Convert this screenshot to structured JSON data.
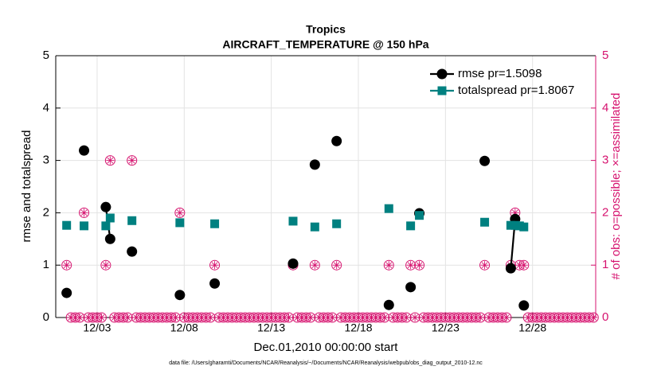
{
  "chart_data": {
    "type": "line",
    "title": "Tropics",
    "subtitle": "AIRCRAFT_TEMPERATURE @ 150 hPa",
    "xlabel": "Dec.01,2010 00:00:00 start",
    "ylabel": "rmse and totalspread",
    "y2label": "# of obs: o=possible; ×=assimilated",
    "footnote": "data file: /Users/gharamti/Documents/NCAR/Reanalysis/~/Documents/NCAR/Reanalysis/webpub/obs_diag_output_2010-12.nc",
    "xlim": [
      -0.375,
      30.625
    ],
    "xticks": [
      {
        "value": 2,
        "label": "12/03"
      },
      {
        "value": 7,
        "label": "12/08"
      },
      {
        "value": 12,
        "label": "12/13"
      },
      {
        "value": 17,
        "label": "12/18"
      },
      {
        "value": 22,
        "label": "12/23"
      },
      {
        "value": 27,
        "label": "12/28"
      }
    ],
    "ylim": [
      0,
      5
    ],
    "yticks": [
      0,
      1,
      2,
      3,
      4,
      5
    ],
    "y2lim": [
      0,
      5
    ],
    "y2ticks": [
      0,
      1,
      2,
      3,
      4,
      5
    ],
    "grid": true,
    "legend": "upper right",
    "x": [
      0.25,
      1.25,
      2.5,
      2.75,
      4.0,
      6.75,
      8.75,
      13.25,
      14.5,
      15.75,
      18.75,
      20.0,
      20.5,
      24.25,
      25.75,
      26.0,
      26.25,
      26.5
    ],
    "series": [
      {
        "name": "rmse pr=1.5098",
        "color": "#000000",
        "marker": "circle",
        "values": [
          0.47,
          3.19,
          2.11,
          1.5,
          1.26,
          0.43,
          0.65,
          1.03,
          2.92,
          3.37,
          0.24,
          0.58,
          1.99,
          2.99,
          0.94,
          1.88,
          null,
          0.23
        ]
      },
      {
        "name": "totalspread pr=1.8067",
        "color": "#008080",
        "marker": "square",
        "values": [
          1.76,
          1.75,
          1.75,
          1.9,
          1.85,
          1.81,
          1.79,
          1.84,
          1.73,
          1.79,
          2.08,
          1.75,
          1.95,
          1.82,
          1.76,
          1.76,
          1.75,
          1.73
        ]
      }
    ],
    "y2_color": "#d6136f",
    "obs_x": [
      0.25,
      0.5,
      0.75,
      1,
      1.25,
      1.5,
      1.75,
      2,
      2.25,
      2.5,
      2.75,
      3,
      3.25,
      3.5,
      3.75,
      4,
      4.25,
      4.5,
      4.75,
      5,
      5.25,
      5.5,
      5.75,
      6,
      6.25,
      6.5,
      6.75,
      7,
      7.25,
      7.5,
      7.75,
      8,
      8.25,
      8.5,
      8.75,
      9,
      9.25,
      9.5,
      9.75,
      10,
      10.25,
      10.5,
      10.75,
      11,
      11.25,
      11.5,
      11.75,
      12,
      12.25,
      12.5,
      12.75,
      13,
      13.25,
      13.5,
      13.75,
      14,
      14.25,
      14.5,
      14.75,
      15,
      15.25,
      15.5,
      15.75,
      16,
      16.25,
      16.5,
      16.75,
      17,
      17.25,
      17.5,
      17.75,
      18,
      18.25,
      18.5,
      18.75,
      19,
      19.25,
      19.5,
      19.75,
      20,
      20.25,
      20.5,
      20.75,
      21,
      21.25,
      21.5,
      21.75,
      22,
      22.25,
      22.5,
      22.75,
      23,
      23.25,
      23.5,
      23.75,
      24,
      24.25,
      24.5,
      24.75,
      25,
      25.25,
      25.5,
      25.75,
      26,
      26.25,
      26.5,
      26.75,
      27,
      27.25,
      27.5,
      27.75,
      28,
      28.25,
      28.5,
      28.75,
      29,
      29.25,
      29.5,
      29.75,
      30,
      30.25,
      30.5
    ],
    "obs_possible": [
      1,
      0,
      0,
      0,
      2,
      0,
      0,
      0,
      0,
      1,
      3,
      0,
      0,
      0,
      0,
      3,
      0,
      0,
      0,
      0,
      0,
      0,
      0,
      0,
      0,
      0,
      2,
      0,
      0,
      0,
      0,
      0,
      0,
      0,
      1,
      0,
      0,
      0,
      0,
      0,
      0,
      0,
      0,
      0,
      0,
      0,
      0,
      0,
      0,
      0,
      0,
      0,
      1,
      0,
      0,
      0,
      0,
      1,
      0,
      0,
      0,
      0,
      1,
      0,
      0,
      0,
      0,
      0,
      0,
      0,
      0,
      0,
      0,
      0,
      1,
      0,
      0,
      0,
      0,
      1,
      0,
      1,
      0,
      0,
      0,
      0,
      0,
      0,
      0,
      0,
      0,
      0,
      0,
      0,
      0,
      0,
      1,
      0,
      0,
      0,
      0,
      0,
      1,
      2,
      1,
      1,
      0,
      0,
      0,
      0,
      0,
      0,
      0,
      0,
      0,
      0,
      0,
      0,
      0,
      0,
      0,
      0
    ],
    "obs_assimilated": [
      1,
      0,
      0,
      0,
      2,
      0,
      0,
      0,
      0,
      1,
      3,
      0,
      0,
      0,
      0,
      3,
      0,
      0,
      0,
      0,
      0,
      0,
      0,
      0,
      0,
      0,
      2,
      0,
      0,
      0,
      0,
      0,
      0,
      0,
      1,
      0,
      0,
      0,
      0,
      0,
      0,
      0,
      0,
      0,
      0,
      0,
      0,
      0,
      0,
      0,
      0,
      0,
      1,
      0,
      0,
      0,
      0,
      1,
      0,
      0,
      0,
      0,
      1,
      0,
      0,
      0,
      0,
      0,
      0,
      0,
      0,
      0,
      0,
      0,
      1,
      0,
      0,
      0,
      0,
      1,
      0,
      1,
      0,
      0,
      0,
      0,
      0,
      0,
      0,
      0,
      0,
      0,
      0,
      0,
      0,
      0,
      1,
      0,
      0,
      0,
      0,
      0,
      1,
      2,
      1,
      1,
      0,
      0,
      0,
      0,
      0,
      0,
      0,
      0,
      0,
      0,
      0,
      0,
      0,
      0,
      0,
      0
    ]
  }
}
